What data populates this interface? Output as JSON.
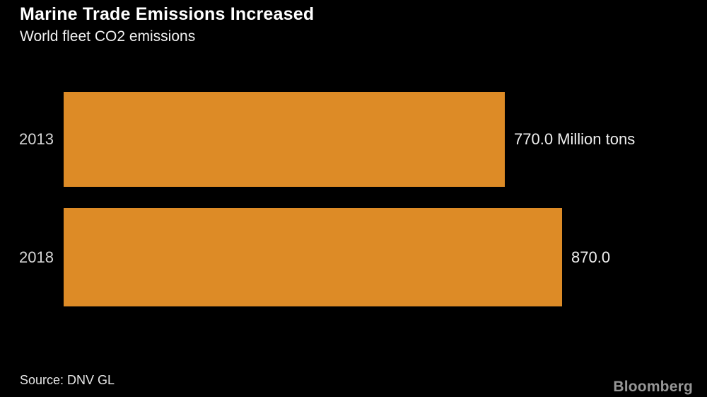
{
  "header": {
    "title": "Marine Trade Emissions Increased",
    "subtitle": "World fleet CO2 emissions"
  },
  "footer": {
    "source": "Source: DNV GL",
    "brand": "Bloomberg"
  },
  "colors": {
    "background": "#000000",
    "bar": "#DD8B26",
    "title_text": "#FFFFFF",
    "category_text": "#D6D6D6",
    "value_text": "#EFEFEF",
    "brand_text": "#969696"
  },
  "chart_data": {
    "type": "bar",
    "orientation": "horizontal",
    "title": "Marine Trade Emissions Increased",
    "subtitle": "World fleet CO2 emissions",
    "categories": [
      "2013",
      "2018"
    ],
    "values": [
      770.0,
      870.0
    ],
    "value_labels": [
      "770.0 Million tons",
      "870.0"
    ],
    "unit": "Million tons",
    "xlim": [
      0,
      870
    ],
    "grid": false,
    "legend": false,
    "source": "DNV GL"
  }
}
